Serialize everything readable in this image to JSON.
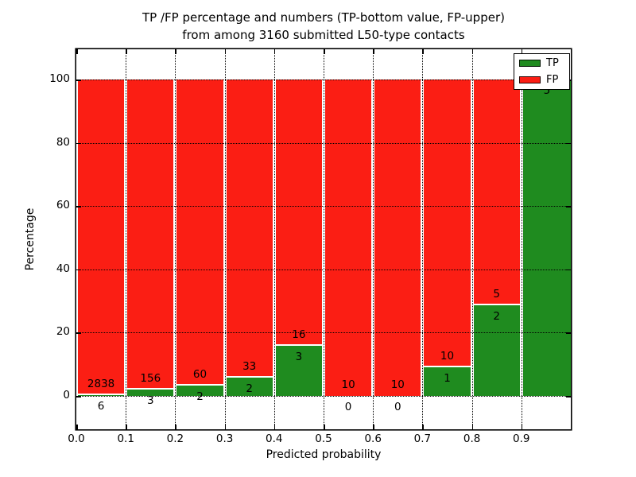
{
  "figure": {
    "title_line1": "TP /FP percentage and numbers (TP-bottom value, FP-upper)",
    "title_line2": "from among 3160 submitted L50-type contacts",
    "xlabel": "Predicted probability",
    "ylabel": "Percentage"
  },
  "legend": {
    "position": "upper right",
    "items": [
      {
        "label": "TP",
        "color": "#1f8b1f"
      },
      {
        "label": "FP",
        "color": "#fb1e14"
      }
    ]
  },
  "axes": {
    "ytick_labels": [
      "0",
      "20",
      "40",
      "60",
      "80",
      "100"
    ],
    "ytick_values": [
      0,
      20,
      40,
      60,
      80,
      100
    ],
    "xtick_labels": [
      "0.0",
      "0.1",
      "0.2",
      "0.3",
      "0.4",
      "0.5",
      "0.6",
      "0.7",
      "0.8",
      "0.9"
    ],
    "xtick_values": [
      0.0,
      0.1,
      0.2,
      0.3,
      0.4,
      0.5,
      0.6,
      0.7,
      0.8,
      0.9
    ],
    "grid": "dotted black, both axes, drawn above bars"
  },
  "chart_data": {
    "type": "bar",
    "stacked": true,
    "normalized_to": 100,
    "title": "TP /FP percentage and numbers (TP-bottom value, FP-upper) from among 3160 submitted L50-type contacts",
    "xlabel": "Predicted probability",
    "ylabel": "Percentage",
    "xlim": [
      0.0,
      1.0
    ],
    "ylim": [
      -10.6,
      109.5
    ],
    "bin_edges": [
      0.0,
      0.1,
      0.2,
      0.3,
      0.4,
      0.5,
      0.6,
      0.7,
      0.8,
      0.9,
      1.0
    ],
    "categories": [
      "0.0-0.1",
      "0.1-0.2",
      "0.2-0.3",
      "0.3-0.4",
      "0.4-0.5",
      "0.5-0.6",
      "0.6-0.7",
      "0.7-0.8",
      "0.8-0.9",
      "0.9-1.0"
    ],
    "series": [
      {
        "name": "TP",
        "color": "#1f8b1f",
        "counts": [
          6,
          3,
          2,
          2,
          3,
          0,
          0,
          1,
          2,
          5
        ]
      },
      {
        "name": "FP",
        "color": "#fb1e14",
        "counts": [
          2838,
          156,
          60,
          33,
          16,
          10,
          10,
          10,
          5,
          0
        ]
      }
    ],
    "tp_percent": [
      0.21,
      1.89,
      3.23,
      5.71,
      15.79,
      0.0,
      0.0,
      9.09,
      28.57,
      100.0
    ],
    "bar_labels": {
      "fp": [
        "2838",
        "156",
        "60",
        "33",
        "16",
        "10",
        "10",
        "10",
        "5",
        ""
      ],
      "tp": [
        "6",
        "3",
        "2",
        "2",
        "3",
        "0",
        "0",
        "1",
        "2",
        "5"
      ]
    },
    "legend_position": "upper right",
    "bar_edge_color": "#ffffff"
  }
}
